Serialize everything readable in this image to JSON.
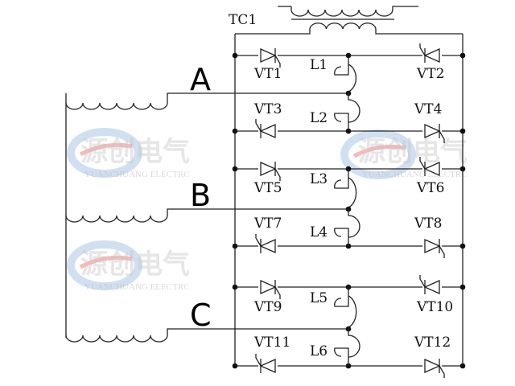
{
  "diagram": {
    "transformer_label": "TC1",
    "phases": [
      "A",
      "B",
      "C"
    ],
    "groups": [
      {
        "top_left": "VT1",
        "top_right": "VT2",
        "bot_left": "VT3",
        "bot_right": "VT4",
        "l_top": "L1",
        "l_bot": "L2"
      },
      {
        "top_left": "VT5",
        "top_right": "VT6",
        "bot_left": "VT7",
        "bot_right": "VT8",
        "l_top": "L3",
        "l_bot": "L4"
      },
      {
        "top_left": "VT9",
        "top_right": "VT10",
        "bot_left": "VT11",
        "bot_right": "VT12",
        "l_top": "L5",
        "l_bot": "L6"
      }
    ]
  },
  "watermark": {
    "cn": "源创电气",
    "en": "YUANCHUANG ELECTRC",
    "colors": {
      "blue": "#a9c6e6",
      "red": "#f08080"
    }
  },
  "colors": {
    "line": "#222222"
  }
}
